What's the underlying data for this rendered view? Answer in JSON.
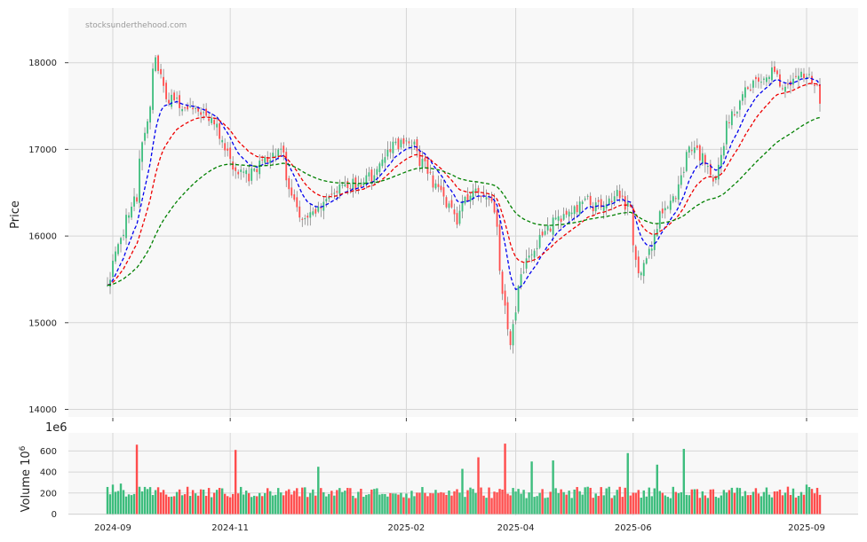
{
  "watermark": "stocksunderthehood.com",
  "colors": {
    "up": "#3dbd7d",
    "down": "#ff4d4d",
    "ma_short": "#0000ee",
    "ma_mid": "#ee0000",
    "ma_long": "#008000",
    "panel": "#f8f8f8",
    "grid": "#d6d6d6"
  },
  "chart_data": [
    {
      "type": "candlestick",
      "ylabel": "Price",
      "ylim": [
        13950,
        18600
      ],
      "yticks": [
        "14000",
        "15000",
        "16000",
        "17000",
        "18000"
      ],
      "xticks": [
        "2024-09",
        "2024-11",
        "2025-02",
        "2025-04",
        "2025-06",
        "2025-09"
      ],
      "grid": true,
      "anchors": {
        "dates": [
          "2024-08-29",
          "2024-09-01",
          "2024-09-08",
          "2024-09-14",
          "2024-09-18",
          "2024-09-24",
          "2024-09-30",
          "2024-10-08",
          "2024-10-16",
          "2024-10-25",
          "2024-11-04",
          "2024-11-12",
          "2024-11-20",
          "2024-11-28",
          "2024-12-06",
          "2024-12-14",
          "2024-12-22",
          "2024-12-30",
          "2025-01-08",
          "2025-01-16",
          "2025-01-25",
          "2025-02-04",
          "2025-02-12",
          "2025-02-20",
          "2025-02-28",
          "2025-03-08",
          "2025-03-15",
          "2025-03-20",
          "2025-03-25",
          "2025-03-29",
          "2025-04-03",
          "2025-04-08",
          "2025-04-15",
          "2025-04-22",
          "2025-04-30",
          "2025-05-08",
          "2025-05-16",
          "2025-05-24",
          "2025-05-30",
          "2025-06-04",
          "2025-06-09",
          "2025-06-16",
          "2025-06-24",
          "2025-07-01",
          "2025-07-08",
          "2025-07-14",
          "2025-07-21",
          "2025-07-28",
          "2025-08-04",
          "2025-08-12",
          "2025-08-20",
          "2025-08-28",
          "2025-09-03",
          "2025-09-08"
        ],
        "close": [
          15500,
          15600,
          16200,
          16500,
          17200,
          18000,
          17600,
          17500,
          17400,
          17300,
          16800,
          16700,
          16900,
          17000,
          16300,
          16200,
          16400,
          16600,
          16600,
          16700,
          17000,
          17100,
          16800,
          16500,
          16200,
          16500,
          16500,
          16300,
          15400,
          14500,
          15600,
          15800,
          16000,
          16200,
          16300,
          16400,
          16300,
          16500,
          16300,
          15600,
          15700,
          16300,
          16500,
          17000,
          16900,
          16600,
          17300,
          17600,
          17800,
          17900,
          17700,
          17900,
          17800,
          17500
        ]
      },
      "moving_averages": [
        {
          "color": "blue",
          "style": "dashed"
        },
        {
          "color": "red",
          "style": "dashed"
        },
        {
          "color": "green",
          "style": "dashed"
        }
      ]
    },
    {
      "type": "bar",
      "ylabel": "Volume  10",
      "ylabel_exponent": "6",
      "offset_label": "1e6",
      "ylim": [
        0,
        740
      ],
      "yticks": [
        "0",
        "200",
        "400",
        "600"
      ],
      "xticks": [
        "2024-09",
        "2024-11",
        "2025-02",
        "2025-04",
        "2025-06",
        "2025-09"
      ],
      "grid": true,
      "base_volume": 200,
      "spikes": [
        {
          "date": "2024-09-02",
          "value": 280
        },
        {
          "date": "2024-09-05",
          "value": 290
        },
        {
          "date": "2024-09-13",
          "value": 660
        },
        {
          "date": "2024-11-05",
          "value": 610
        },
        {
          "date": "2024-12-18",
          "value": 450
        },
        {
          "date": "2025-03-04",
          "value": 430
        },
        {
          "date": "2025-03-12",
          "value": 540
        },
        {
          "date": "2025-03-26",
          "value": 670
        },
        {
          "date": "2025-04-09",
          "value": 500
        },
        {
          "date": "2025-04-21",
          "value": 510
        },
        {
          "date": "2025-05-29",
          "value": 580
        },
        {
          "date": "2025-06-13",
          "value": 470
        },
        {
          "date": "2025-06-27",
          "value": 620
        },
        {
          "date": "2025-09-01",
          "value": 280
        }
      ]
    }
  ]
}
